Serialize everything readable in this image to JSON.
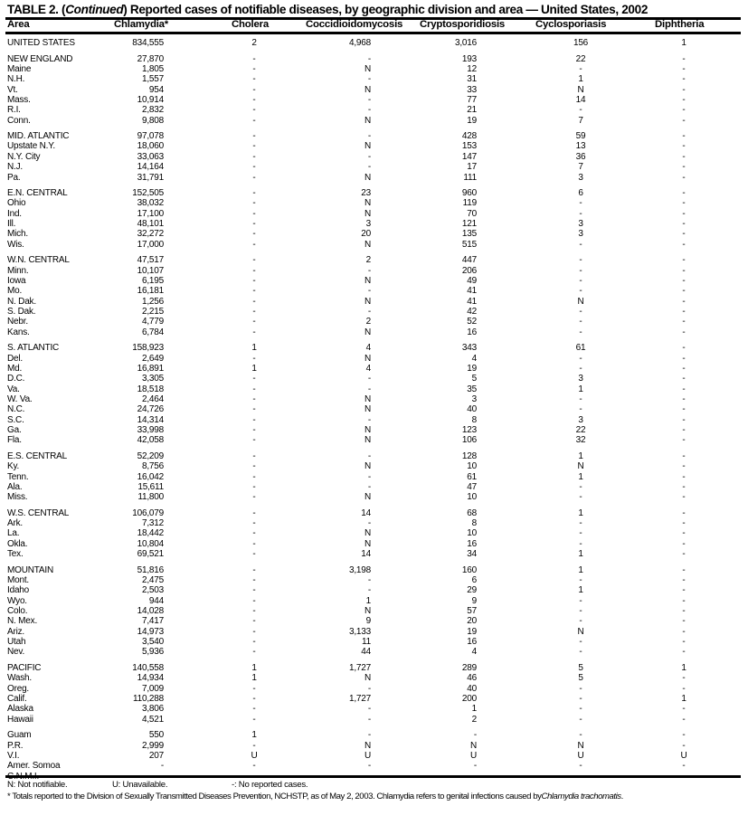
{
  "title": {
    "prefix": "TABLE 2. (",
    "italic": "Continued",
    "rest": ") Reported cases of notifiable diseases, by geographic division and area — United States, 2002"
  },
  "columns": [
    "Area",
    "Chlamydia*",
    "Cholera",
    "Coccidioidomycosis",
    "Cryptosporidiosis",
    "Cyclosporiasis",
    "Diphtheria"
  ],
  "groups": [
    [
      [
        "UNITED STATES",
        "834,555",
        "2",
        "4,968",
        "3,016",
        "156",
        "1"
      ]
    ],
    [
      [
        "NEW ENGLAND",
        "27,870",
        "-",
        "-",
        "193",
        "22",
        "-"
      ],
      [
        "Maine",
        "1,805",
        "-",
        "N",
        "12",
        "-",
        "-"
      ],
      [
        "N.H.",
        "1,557",
        "-",
        "-",
        "31",
        "1",
        "-"
      ],
      [
        "Vt.",
        "954",
        "-",
        "N",
        "33",
        "N",
        "-"
      ],
      [
        "Mass.",
        "10,914",
        "-",
        "-",
        "77",
        "14",
        "-"
      ],
      [
        "R.I.",
        "2,832",
        "-",
        "-",
        "21",
        "-",
        "-"
      ],
      [
        "Conn.",
        "9,808",
        "-",
        "N",
        "19",
        "7",
        "-"
      ]
    ],
    [
      [
        "MID. ATLANTIC",
        "97,078",
        "-",
        "-",
        "428",
        "59",
        "-"
      ],
      [
        "Upstate N.Y.",
        "18,060",
        "-",
        "N",
        "153",
        "13",
        "-"
      ],
      [
        "N.Y. City",
        "33,063",
        "-",
        "-",
        "147",
        "36",
        "-"
      ],
      [
        "N.J.",
        "14,164",
        "-",
        "-",
        "17",
        "7",
        "-"
      ],
      [
        "Pa.",
        "31,791",
        "-",
        "N",
        "111",
        "3",
        "-"
      ]
    ],
    [
      [
        "E.N. CENTRAL",
        "152,505",
        "-",
        "23",
        "960",
        "6",
        "-"
      ],
      [
        "Ohio",
        "38,032",
        "-",
        "N",
        "119",
        "-",
        "-"
      ],
      [
        "Ind.",
        "17,100",
        "-",
        "N",
        "70",
        "-",
        "-"
      ],
      [
        "Ill.",
        "48,101",
        "-",
        "3",
        "121",
        "3",
        "-"
      ],
      [
        "Mich.",
        "32,272",
        "-",
        "20",
        "135",
        "3",
        "-"
      ],
      [
        "Wis.",
        "17,000",
        "-",
        "N",
        "515",
        "-",
        "-"
      ]
    ],
    [
      [
        "W.N. CENTRAL",
        "47,517",
        "-",
        "2",
        "447",
        "-",
        "-"
      ],
      [
        "Minn.",
        "10,107",
        "-",
        "-",
        "206",
        "-",
        "-"
      ],
      [
        "Iowa",
        "6,195",
        "-",
        "N",
        "49",
        "-",
        "-"
      ],
      [
        "Mo.",
        "16,181",
        "-",
        "-",
        "41",
        "-",
        "-"
      ],
      [
        "N. Dak.",
        "1,256",
        "-",
        "N",
        "41",
        "N",
        "-"
      ],
      [
        "S. Dak.",
        "2,215",
        "-",
        "-",
        "42",
        "-",
        "-"
      ],
      [
        "Nebr.",
        "4,779",
        "-",
        "2",
        "52",
        "-",
        "-"
      ],
      [
        "Kans.",
        "6,784",
        "-",
        "N",
        "16",
        "-",
        "-"
      ]
    ],
    [
      [
        "S. ATLANTIC",
        "158,923",
        "1",
        "4",
        "343",
        "61",
        "-"
      ],
      [
        "Del.",
        "2,649",
        "-",
        "N",
        "4",
        "-",
        "-"
      ],
      [
        "Md.",
        "16,891",
        "1",
        "4",
        "19",
        "-",
        "-"
      ],
      [
        "D.C.",
        "3,305",
        "-",
        "-",
        "5",
        "3",
        "-"
      ],
      [
        "Va.",
        "18,518",
        "-",
        "-",
        "35",
        "1",
        "-"
      ],
      [
        "W. Va.",
        "2,464",
        "-",
        "N",
        "3",
        "-",
        "-"
      ],
      [
        "N.C.",
        "24,726",
        "-",
        "N",
        "40",
        "-",
        "-"
      ],
      [
        "S.C.",
        "14,314",
        "-",
        "-",
        "8",
        "3",
        "-"
      ],
      [
        "Ga.",
        "33,998",
        "-",
        "N",
        "123",
        "22",
        "-"
      ],
      [
        "Fla.",
        "42,058",
        "-",
        "N",
        "106",
        "32",
        "-"
      ]
    ],
    [
      [
        "E.S. CENTRAL",
        "52,209",
        "-",
        "-",
        "128",
        "1",
        "-"
      ],
      [
        "Ky.",
        "8,756",
        "-",
        "N",
        "10",
        "N",
        "-"
      ],
      [
        "Tenn.",
        "16,042",
        "-",
        "-",
        "61",
        "1",
        "-"
      ],
      [
        "Ala.",
        "15,611",
        "-",
        "-",
        "47",
        "-",
        "-"
      ],
      [
        "Miss.",
        "11,800",
        "-",
        "N",
        "10",
        "-",
        "-"
      ]
    ],
    [
      [
        "W.S. CENTRAL",
        "106,079",
        "-",
        "14",
        "68",
        "1",
        "-"
      ],
      [
        "Ark.",
        "7,312",
        "-",
        "-",
        "8",
        "-",
        "-"
      ],
      [
        "La.",
        "18,442",
        "-",
        "N",
        "10",
        "-",
        "-"
      ],
      [
        "Okla.",
        "10,804",
        "-",
        "N",
        "16",
        "-",
        "-"
      ],
      [
        "Tex.",
        "69,521",
        "-",
        "14",
        "34",
        "1",
        "-"
      ]
    ],
    [
      [
        "MOUNTAIN",
        "51,816",
        "-",
        "3,198",
        "160",
        "1",
        "-"
      ],
      [
        "Mont.",
        "2,475",
        "-",
        "-",
        "6",
        "-",
        "-"
      ],
      [
        "Idaho",
        "2,503",
        "-",
        "-",
        "29",
        "1",
        "-"
      ],
      [
        "Wyo.",
        "944",
        "-",
        "1",
        "9",
        "-",
        "-"
      ],
      [
        "Colo.",
        "14,028",
        "-",
        "N",
        "57",
        "-",
        "-"
      ],
      [
        "N. Mex.",
        "7,417",
        "-",
        "9",
        "20",
        "-",
        "-"
      ],
      [
        "Ariz.",
        "14,973",
        "-",
        "3,133",
        "19",
        "N",
        "-"
      ],
      [
        "Utah",
        "3,540",
        "-",
        "11",
        "16",
        "-",
        "-"
      ],
      [
        "Nev.",
        "5,936",
        "-",
        "44",
        "4",
        "-",
        "-"
      ]
    ],
    [
      [
        "PACIFIC",
        "140,558",
        "1",
        "1,727",
        "289",
        "5",
        "1"
      ],
      [
        "Wash.",
        "14,934",
        "1",
        "N",
        "46",
        "5",
        "-"
      ],
      [
        "Oreg.",
        "7,009",
        "-",
        "-",
        "40",
        "-",
        "-"
      ],
      [
        "Calif.",
        "110,288",
        "-",
        "1,727",
        "200",
        "-",
        "1"
      ],
      [
        "Alaska",
        "3,806",
        "-",
        "-",
        "1",
        "-",
        "-"
      ],
      [
        "Hawaii",
        "4,521",
        "-",
        "-",
        "2",
        "-",
        "-"
      ]
    ],
    [
      [
        "Guam",
        "550",
        "1",
        "-",
        "-",
        "-",
        "-"
      ],
      [
        "P.R.",
        "2,999",
        "-",
        "N",
        "N",
        "N",
        "-"
      ],
      [
        "V.I.",
        "207",
        "U",
        "U",
        "U",
        "U",
        "U"
      ],
      [
        "Amer. Somoa",
        "-",
        "-",
        "-",
        "-",
        "-",
        "-"
      ],
      [
        "C.N.M.I.",
        "-",
        "-",
        "-",
        "-",
        "-",
        "-"
      ]
    ]
  ],
  "footnotes": {
    "legend": [
      "N: Not notifiable.",
      "U: Unavailable.",
      "-: No reported cases."
    ],
    "note_text": "* Totals reported to the Division of Sexually Transmitted Diseases Prevention, NCHSTP, as of May 2, 2003. Chlamydia refers to genital infections caused by ",
    "note_italic": "Chlamydia trachomatis",
    "note_end": "."
  }
}
